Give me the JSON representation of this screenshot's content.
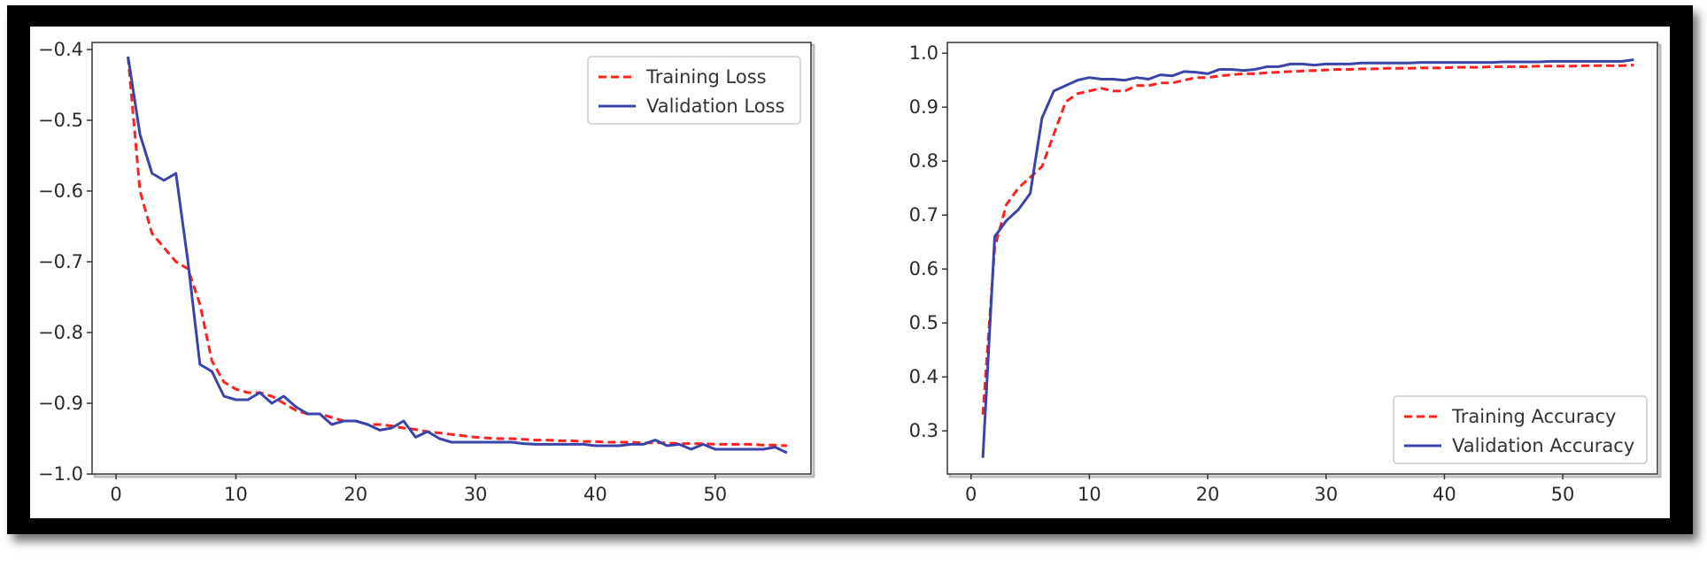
{
  "chart_data": [
    {
      "type": "line",
      "xlim": [
        -2,
        58
      ],
      "ylim": [
        -1.0,
        -0.39
      ],
      "xticks": [
        0,
        10,
        20,
        30,
        40,
        50
      ],
      "yticks": [
        -0.4,
        -0.5,
        -0.6,
        -0.7,
        -0.8,
        -0.9,
        -1.0
      ],
      "xtick_labels": [
        "0",
        "10",
        "20",
        "30",
        "40",
        "50"
      ],
      "ytick_labels": [
        "−0.4",
        "−0.5",
        "−0.6",
        "−0.7",
        "−0.8",
        "−0.9",
        "−1.0"
      ],
      "grid": false,
      "legend_position": "top-right",
      "x": [
        1,
        2,
        3,
        4,
        5,
        6,
        7,
        8,
        9,
        10,
        11,
        12,
        13,
        14,
        15,
        16,
        17,
        18,
        19,
        20,
        21,
        22,
        23,
        24,
        25,
        26,
        27,
        28,
        29,
        30,
        31,
        32,
        33,
        34,
        35,
        36,
        37,
        38,
        39,
        40,
        41,
        42,
        43,
        44,
        45,
        46,
        47,
        48,
        49,
        50,
        51,
        52,
        53,
        54,
        55,
        56
      ],
      "series": [
        {
          "name": "Training Loss",
          "color": "#ff2020",
          "dash": "dashed",
          "values": [
            -0.41,
            -0.6,
            -0.66,
            -0.68,
            -0.7,
            -0.71,
            -0.76,
            -0.84,
            -0.87,
            -0.88,
            -0.885,
            -0.885,
            -0.89,
            -0.9,
            -0.91,
            -0.915,
            -0.915,
            -0.92,
            -0.925,
            -0.925,
            -0.93,
            -0.93,
            -0.932,
            -0.935,
            -0.937,
            -0.94,
            -0.942,
            -0.944,
            -0.946,
            -0.948,
            -0.949,
            -0.95,
            -0.95,
            -0.951,
            -0.952,
            -0.952,
            -0.953,
            -0.953,
            -0.954,
            -0.954,
            -0.955,
            -0.955,
            -0.955,
            -0.956,
            -0.956,
            -0.956,
            -0.957,
            -0.957,
            -0.957,
            -0.958,
            -0.958,
            -0.958,
            -0.958,
            -0.959,
            -0.959,
            -0.96
          ]
        },
        {
          "name": "Validation Loss",
          "color": "#3a44a8",
          "dash": "solid",
          "values": [
            -0.41,
            -0.52,
            -0.575,
            -0.585,
            -0.575,
            -0.7,
            -0.845,
            -0.855,
            -0.89,
            -0.895,
            -0.895,
            -0.885,
            -0.9,
            -0.89,
            -0.905,
            -0.915,
            -0.915,
            -0.93,
            -0.925,
            -0.925,
            -0.93,
            -0.938,
            -0.935,
            -0.925,
            -0.948,
            -0.94,
            -0.95,
            -0.955,
            -0.955,
            -0.955,
            -0.955,
            -0.955,
            -0.955,
            -0.957,
            -0.958,
            -0.958,
            -0.958,
            -0.958,
            -0.958,
            -0.96,
            -0.96,
            -0.96,
            -0.958,
            -0.958,
            -0.952,
            -0.96,
            -0.958,
            -0.965,
            -0.958,
            -0.965,
            -0.965,
            -0.965,
            -0.965,
            -0.965,
            -0.962,
            -0.97
          ]
        }
      ]
    },
    {
      "type": "line",
      "xlim": [
        -2,
        58
      ],
      "ylim": [
        0.22,
        1.02
      ],
      "xticks": [
        0,
        10,
        20,
        30,
        40,
        50
      ],
      "yticks": [
        0.3,
        0.4,
        0.5,
        0.6,
        0.7,
        0.8,
        0.9,
        1.0
      ],
      "xtick_labels": [
        "0",
        "10",
        "20",
        "30",
        "40",
        "50"
      ],
      "ytick_labels": [
        "0.3",
        "0.4",
        "0.5",
        "0.6",
        "0.7",
        "0.8",
        "0.9",
        "1.0"
      ],
      "grid": false,
      "legend_position": "bottom-right",
      "x": [
        1,
        2,
        3,
        4,
        5,
        6,
        7,
        8,
        9,
        10,
        11,
        12,
        13,
        14,
        15,
        16,
        17,
        18,
        19,
        20,
        21,
        22,
        23,
        24,
        25,
        26,
        27,
        28,
        29,
        30,
        31,
        32,
        33,
        34,
        35,
        36,
        37,
        38,
        39,
        40,
        41,
        42,
        43,
        44,
        45,
        46,
        47,
        48,
        49,
        50,
        51,
        52,
        53,
        54,
        55,
        56
      ],
      "series": [
        {
          "name": "Training Accuracy",
          "color": "#ff2020",
          "dash": "dashed",
          "values": [
            0.33,
            0.64,
            0.72,
            0.75,
            0.77,
            0.79,
            0.85,
            0.91,
            0.925,
            0.93,
            0.935,
            0.93,
            0.93,
            0.94,
            0.94,
            0.945,
            0.945,
            0.95,
            0.955,
            0.955,
            0.958,
            0.96,
            0.962,
            0.962,
            0.964,
            0.965,
            0.966,
            0.967,
            0.968,
            0.969,
            0.97,
            0.97,
            0.971,
            0.971,
            0.972,
            0.972,
            0.972,
            0.973,
            0.973,
            0.973,
            0.974,
            0.974,
            0.974,
            0.975,
            0.975,
            0.975,
            0.975,
            0.976,
            0.976,
            0.976,
            0.976,
            0.977,
            0.977,
            0.977,
            0.977,
            0.978
          ]
        },
        {
          "name": "Validation Accuracy",
          "color": "#3a44a8",
          "dash": "solid",
          "values": [
            0.25,
            0.66,
            0.69,
            0.71,
            0.74,
            0.88,
            0.93,
            0.94,
            0.95,
            0.955,
            0.952,
            0.952,
            0.95,
            0.955,
            0.952,
            0.96,
            0.958,
            0.966,
            0.965,
            0.962,
            0.97,
            0.97,
            0.968,
            0.97,
            0.975,
            0.975,
            0.98,
            0.98,
            0.978,
            0.98,
            0.98,
            0.98,
            0.982,
            0.982,
            0.982,
            0.982,
            0.982,
            0.983,
            0.983,
            0.983,
            0.983,
            0.983,
            0.983,
            0.983,
            0.984,
            0.984,
            0.984,
            0.984,
            0.985,
            0.985,
            0.985,
            0.985,
            0.985,
            0.985,
            0.985,
            0.988
          ]
        }
      ]
    }
  ]
}
